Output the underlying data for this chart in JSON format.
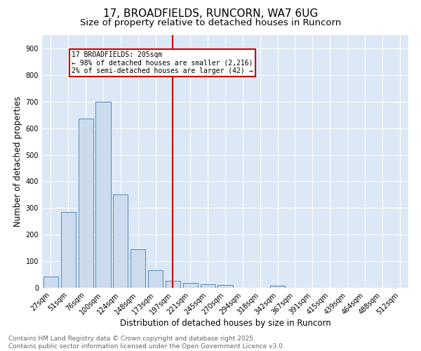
{
  "title": "17, BROADFIELDS, RUNCORN, WA7 6UG",
  "subtitle": "Size of property relative to detached houses in Runcorn",
  "xlabel": "Distribution of detached houses by size in Runcorn",
  "ylabel": "Number of detached properties",
  "bar_labels": [
    "27sqm",
    "51sqm",
    "76sqm",
    "100sqm",
    "124sqm",
    "148sqm",
    "173sqm",
    "197sqm",
    "221sqm",
    "245sqm",
    "270sqm",
    "294sqm",
    "318sqm",
    "342sqm",
    "367sqm",
    "391sqm",
    "415sqm",
    "439sqm",
    "464sqm",
    "488sqm",
    "512sqm"
  ],
  "bar_values": [
    42,
    285,
    635,
    700,
    352,
    145,
    65,
    27,
    18,
    12,
    10,
    0,
    0,
    7,
    0,
    0,
    0,
    0,
    0,
    0,
    0
  ],
  "bar_color": "#ccdcee",
  "bar_edge_color": "#5588bb",
  "vline_x_index": 7,
  "vline_color": "#cc0000",
  "annotation_text": "17 BROADFIELDS: 205sqm\n← 98% of detached houses are smaller (2,216)\n2% of semi-detached houses are larger (42) →",
  "annotation_box_color": "#ffffff",
  "annotation_box_edge_color": "#cc0000",
  "ylim": [
    0,
    950
  ],
  "yticks": [
    0,
    100,
    200,
    300,
    400,
    500,
    600,
    700,
    800,
    900
  ],
  "plot_bg_color": "#dce8f5",
  "footer_line1": "Contains HM Land Registry data © Crown copyright and database right 2025.",
  "footer_line2": "Contains public sector information licensed under the Open Government Licence v3.0.",
  "title_fontsize": 11,
  "subtitle_fontsize": 9.5,
  "axis_label_fontsize": 8.5,
  "tick_fontsize": 7,
  "footer_fontsize": 6.5
}
